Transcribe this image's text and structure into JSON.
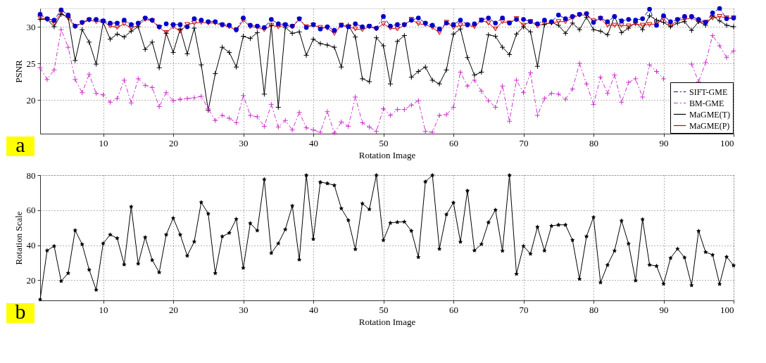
{
  "chart_data": [
    {
      "type": "line",
      "xlabel": "Rotation Image",
      "ylabel": "PSNR",
      "annotations": [
        "a"
      ],
      "xlim": [
        1,
        100
      ],
      "ylim": [
        15.4,
        32.5
      ],
      "xticks": [
        10,
        20,
        30,
        40,
        50,
        60,
        70,
        80,
        90,
        100
      ],
      "yticks": [
        20,
        25,
        30
      ],
      "grid": true,
      "legend": "bottom right",
      "x": [
        1,
        2,
        3,
        4,
        5,
        6,
        7,
        8,
        9,
        10,
        11,
        12,
        13,
        14,
        15,
        16,
        17,
        18,
        19,
        20,
        21,
        22,
        23,
        24,
        25,
        26,
        27,
        28,
        29,
        30,
        31,
        32,
        33,
        34,
        35,
        36,
        37,
        38,
        39,
        40,
        41,
        42,
        43,
        44,
        45,
        46,
        47,
        48,
        49,
        50,
        51,
        52,
        53,
        54,
        55,
        56,
        57,
        58,
        59,
        60,
        61,
        62,
        63,
        64,
        65,
        66,
        67,
        68,
        69,
        70,
        71,
        72,
        73,
        74,
        75,
        76,
        77,
        78,
        79,
        80,
        81,
        82,
        83,
        84,
        85,
        86,
        87,
        88,
        89,
        90,
        91,
        92,
        93,
        94,
        95,
        96,
        97,
        98,
        99,
        100
      ],
      "series": [
        {
          "name": "SIFT-GME",
          "color": "#0000cc",
          "marker": "circle",
          "line_style": "dashed",
          "values": [
            31.7,
            31.1,
            30.9,
            32.3,
            31.6,
            30.1,
            30.6,
            31.0,
            31.0,
            30.8,
            30.5,
            30.5,
            30.9,
            30.3,
            30.5,
            31.2,
            30.9,
            30.0,
            30.4,
            30.3,
            30.3,
            30.0,
            31.1,
            30.9,
            30.7,
            30.7,
            30.3,
            30.2,
            29.6,
            31.2,
            30.2,
            30.1,
            29.9,
            31.0,
            30.4,
            30.3,
            30.1,
            31.1,
            29.9,
            30.3,
            29.7,
            30.0,
            29.5,
            30.2,
            30.0,
            30.4,
            30.0,
            30.1,
            29.8,
            31.4,
            30.1,
            30.3,
            30.3,
            30.9,
            31.2,
            30.5,
            30.2,
            29.7,
            30.5,
            30.3,
            30.9,
            30.3,
            30.4,
            30.9,
            31.2,
            30.5,
            31.2,
            30.5,
            31.0,
            31.0,
            30.7,
            30.4,
            30.9,
            30.7,
            31.6,
            31.1,
            31.4,
            31.7,
            31.8,
            30.6,
            31.2,
            30.7,
            31.4,
            30.8,
            31.0,
            30.9,
            31.1,
            32.4,
            30.2,
            31.5,
            30.7,
            31.0,
            31.4,
            31.4,
            31.0,
            30.6,
            31.9,
            32.5,
            31.1,
            31.2
          ]
        },
        {
          "name": "BM-GME",
          "color": "#cc33cc",
          "marker": "cross",
          "line_style": "dashed",
          "values": [
            24.4,
            22.8,
            24.1,
            29.6,
            27.2,
            22.8,
            21.0,
            23.5,
            20.9,
            20.7,
            19.7,
            20.2,
            22.7,
            19.6,
            22.9,
            22.0,
            21.7,
            19.1,
            21.0,
            19.9,
            20.1,
            20.2,
            20.3,
            20.5,
            18.8,
            17.2,
            17.9,
            17.5,
            16.9,
            20.6,
            17.9,
            17.7,
            16.4,
            19.4,
            16.3,
            17.2,
            15.9,
            18.3,
            16.2,
            15.9,
            15.6,
            18.4,
            15.5,
            17.0,
            16.4,
            20.4,
            16.9,
            16.3,
            15.7,
            18.8,
            17.9,
            18.7,
            18.7,
            19.3,
            19.9,
            15.7,
            15.6,
            17.9,
            18.0,
            19.0,
            23.8,
            21.9,
            22.7,
            21.2,
            19.9,
            19.0,
            21.9,
            17.1,
            22.7,
            21.0,
            23.7,
            17.9,
            20.2,
            20.9,
            20.8,
            20.1,
            21.5,
            25.0,
            22.2,
            19.4,
            23.1,
            20.9,
            23.4,
            19.7,
            22.4,
            22.9,
            20.4,
            24.8,
            23.9,
            22.9,
            null,
            null,
            null,
            24.9,
            22.5,
            25.1,
            28.8,
            27.4,
            25.8,
            26.7
          ]
        },
        {
          "name": "MaGME(T)",
          "color": "#000000",
          "marker": "cross",
          "line_style": "solid",
          "values": [
            31.0,
            31.0,
            30.0,
            31.7,
            31.3,
            25.4,
            29.6,
            27.9,
            24.9,
            30.6,
            28.3,
            29.0,
            28.6,
            29.4,
            30.0,
            26.9,
            27.9,
            24.4,
            29.1,
            26.5,
            29.7,
            26.3,
            29.8,
            24.8,
            18.6,
            23.6,
            27.2,
            26.5,
            24.5,
            28.7,
            28.4,
            29.2,
            20.8,
            30.2,
            19.0,
            29.9,
            29.1,
            29.3,
            26.1,
            28.3,
            27.7,
            27.5,
            27.2,
            24.5,
            30.2,
            28.6,
            22.9,
            22.5,
            28.5,
            27.4,
            22.2,
            28.0,
            28.8,
            23.1,
            23.9,
            24.5,
            22.7,
            22.2,
            24.1,
            29.0,
            29.7,
            25.8,
            23.4,
            23.8,
            28.9,
            28.7,
            27.2,
            26.2,
            29.0,
            30.0,
            29.3,
            24.6,
            30.3,
            30.6,
            30.2,
            29.1,
            30.5,
            29.6,
            31.3,
            29.6,
            29.4,
            28.9,
            31.4,
            29.2,
            29.8,
            30.6,
            29.6,
            31.5,
            30.9,
            30.6,
            30.0,
            30.5,
            30.7,
            29.5,
            30.7,
            30.2,
            31.5,
            30.8,
            30.2,
            30.0
          ]
        },
        {
          "name": "MaGME(P)",
          "color": "#cc0000",
          "marker": "triangle",
          "line_style": "solid",
          "values": [
            31.2,
            31.0,
            30.5,
            31.9,
            31.2,
            30.0,
            30.5,
            30.9,
            30.7,
            30.7,
            30.1,
            29.9,
            30.4,
            29.8,
            30.2,
            31.0,
            30.8,
            29.9,
            29.2,
            30.0,
            29.4,
            30.3,
            30.5,
            30.6,
            30.5,
            30.5,
            30.2,
            30.0,
            29.5,
            30.9,
            30.0,
            29.9,
            29.6,
            30.2,
            30.0,
            30.2,
            30.0,
            31.0,
            30.0,
            30.2,
            29.9,
            29.8,
            29.1,
            30.2,
            30.0,
            29.7,
            29.6,
            30.0,
            29.7,
            30.4,
            29.8,
            29.7,
            30.2,
            31.0,
            30.4,
            30.3,
            29.9,
            29.2,
            30.6,
            29.9,
            30.2,
            30.2,
            30.0,
            30.9,
            30.5,
            29.7,
            30.7,
            30.5,
            31.1,
            30.2,
            30.7,
            30.1,
            30.4,
            30.5,
            30.7,
            30.7,
            31.2,
            31.6,
            31.6,
            30.8,
            31.1,
            30.2,
            30.2,
            30.2,
            30.1,
            30.4,
            30.2,
            30.3,
            30.4,
            31.1,
            30.1,
            30.9,
            31.0,
            31.2,
            30.7,
            30.6,
            31.2,
            31.4,
            31.2,
            31.2
          ]
        }
      ]
    },
    {
      "type": "line",
      "xlabel": "Rotation Image",
      "ylabel": "Rotation Scale",
      "annotations": [
        "b"
      ],
      "xlim": [
        1,
        100
      ],
      "ylim": [
        8.5,
        80
      ],
      "xticks": [
        10,
        20,
        30,
        40,
        50,
        60,
        70,
        80,
        90,
        100
      ],
      "yticks": [
        20,
        40,
        60,
        80
      ],
      "grid": true,
      "x": [
        1,
        2,
        3,
        4,
        5,
        6,
        7,
        8,
        9,
        10,
        11,
        12,
        13,
        14,
        15,
        16,
        17,
        18,
        19,
        20,
        21,
        22,
        23,
        24,
        25,
        26,
        27,
        28,
        29,
        30,
        31,
        32,
        33,
        34,
        35,
        36,
        37,
        38,
        39,
        40,
        41,
        42,
        43,
        44,
        45,
        46,
        47,
        48,
        49,
        50,
        51,
        52,
        53,
        54,
        55,
        56,
        57,
        58,
        59,
        60,
        61,
        62,
        63,
        64,
        65,
        66,
        67,
        68,
        69,
        70,
        71,
        72,
        73,
        74,
        75,
        76,
        77,
        78,
        79,
        80,
        81,
        82,
        83,
        84,
        85,
        86,
        87,
        88,
        89,
        90,
        91,
        92,
        93,
        94,
        95,
        96,
        97,
        98,
        99,
        100
      ],
      "series": [
        {
          "color": "#000000",
          "marker": "star",
          "line_style": "solid",
          "values": [
            9,
            37,
            39.5,
            19.5,
            24,
            48.5,
            40.5,
            26,
            14.5,
            41,
            46,
            44,
            29,
            62,
            29.5,
            44.5,
            31.5,
            24.5,
            46,
            55.5,
            46,
            34,
            42,
            64.5,
            58,
            24,
            45,
            47,
            55,
            27,
            52.5,
            48.4,
            77.6,
            35.5,
            41,
            49,
            62.5,
            31.8,
            80,
            43.5,
            76,
            75.3,
            74.2,
            61,
            54.3,
            37.7,
            63.8,
            60.5,
            80,
            42.8,
            52.7,
            53.2,
            53.4,
            48.2,
            33.2,
            76.3,
            80,
            37.9,
            57.6,
            64.3,
            41.9,
            71.1,
            37,
            40.6,
            53,
            60.2,
            36.8,
            80,
            23.6,
            39.5,
            35.1,
            50.4,
            36.9,
            51,
            51.6,
            51.6,
            42.9,
            20.7,
            45,
            56,
            18.7,
            28.7,
            36.8,
            54,
            40.9,
            19.8,
            54.8,
            28.8,
            28.1,
            17.9,
            32.7,
            37.9,
            33,
            17.1,
            48.1,
            36.1,
            34.5,
            17.8,
            33.4,
            28.4
          ]
        }
      ]
    }
  ]
}
